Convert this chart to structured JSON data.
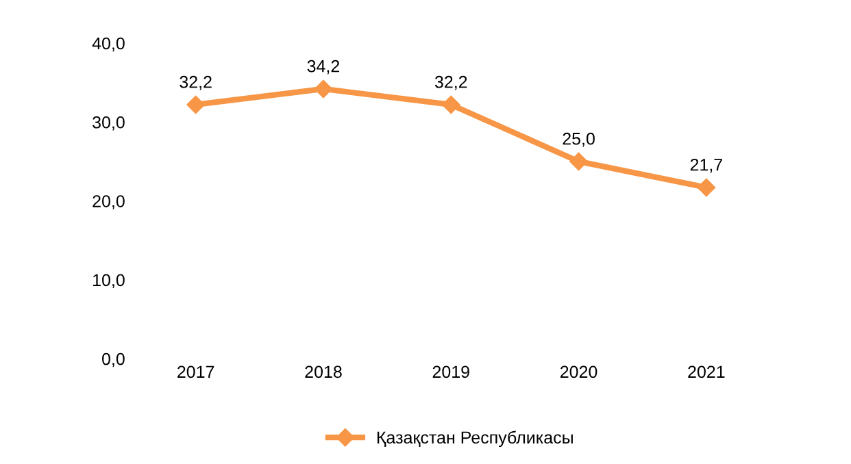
{
  "chart_data": {
    "type": "line",
    "categories": [
      "2017",
      "2018",
      "2019",
      "2020",
      "2021"
    ],
    "series": [
      {
        "name": "Қазақстан Республикасы",
        "color": "#f79646",
        "values": [
          32.2,
          34.2,
          32.2,
          25.0,
          21.7
        ],
        "value_labels": [
          "32,2",
          "34,2",
          "32,2",
          "25,0",
          "21,7"
        ]
      }
    ],
    "ylim": [
      0,
      40
    ],
    "yticks": [
      {
        "value": 0,
        "label": "0,0"
      },
      {
        "value": 10,
        "label": "10,0"
      },
      {
        "value": 20,
        "label": "20,0"
      },
      {
        "value": 30,
        "label": "30,0"
      },
      {
        "value": 40,
        "label": "40,0"
      }
    ],
    "marker": "diamond",
    "line_style": "solid",
    "grid": false,
    "legend": "bottom"
  }
}
